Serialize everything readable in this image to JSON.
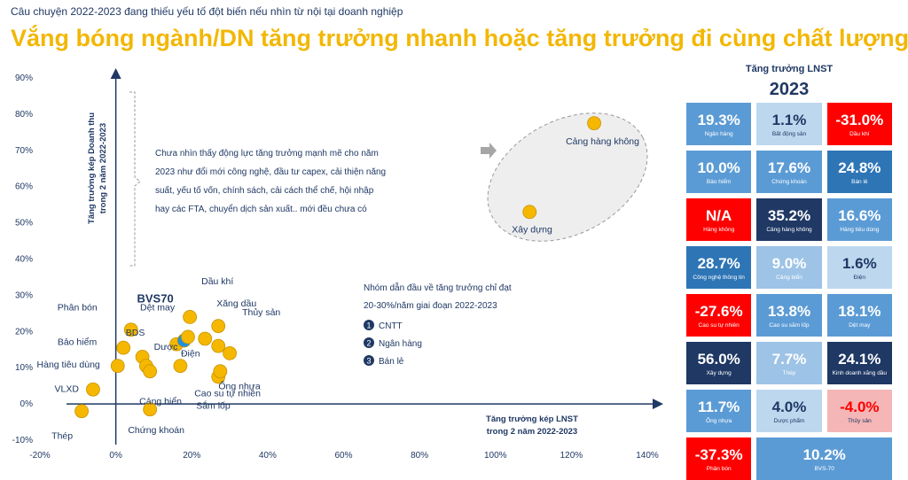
{
  "header": {
    "kicker": "Câu chuyện 2022-2023 đang thiếu yếu tố đột biến nếu nhìn từ nội tại doanh nghiệp",
    "title": "Vắng bóng ngành/DN tăng trưởng nhanh hoặc tăng trưởng đi cùng chất lượng"
  },
  "chart_data": {
    "type": "scatter",
    "xlabel": [
      "Tăng trưởng kép LNST",
      "trong 2 năm 2022-2023"
    ],
    "ylabel": [
      "Tăng trưởng kép Doanh thu",
      "trong 2 năm 2022-2023"
    ],
    "xlim": [
      -20,
      140
    ],
    "ylim": [
      -10,
      90
    ],
    "x_ticks": [
      "-20%",
      "0%",
      "20%",
      "40%",
      "60%",
      "80%",
      "100%",
      "120%",
      "140%"
    ],
    "y_ticks": [
      "-10%",
      "0%",
      "10%",
      "20%",
      "30%",
      "40%",
      "50%",
      "60%",
      "70%",
      "80%",
      "90%"
    ],
    "points": [
      {
        "label": "Thép",
        "x": -9,
        "y": -2
      },
      {
        "label": "VLXD",
        "x": -6,
        "y": 4
      },
      {
        "label": "Hàng tiêu dùng",
        "x": 0.5,
        "y": 10.5
      },
      {
        "label": "Bảo hiểm",
        "x": 2,
        "y": 15.5
      },
      {
        "label": "Phân bón",
        "x": 4,
        "y": 20.5
      },
      {
        "label": "BDS",
        "x": 7,
        "y": 13
      },
      {
        "label": "",
        "x": 8,
        "y": 10.5
      },
      {
        "label": "Cảng biển",
        "x": 9,
        "y": 9
      },
      {
        "label": "Chứng khoán",
        "x": 9,
        "y": -1.5
      },
      {
        "label": "Dệt may",
        "x": 16,
        "y": 16.5
      },
      {
        "label": "Dược",
        "x": 17,
        "y": 10.5
      },
      {
        "label": "BVS70",
        "x": 18,
        "y": 17.5,
        "highlight": true
      },
      {
        "label": "Điện",
        "x": 19,
        "y": 18.5
      },
      {
        "label": "Dầu khí",
        "x": 19.5,
        "y": 24
      },
      {
        "label": "",
        "x": 23.5,
        "y": 18
      },
      {
        "label": "Xăng dầu",
        "x": 27,
        "y": 21.5
      },
      {
        "label": "Cao su tự nhiên",
        "x": 27,
        "y": 7.5
      },
      {
        "label": "Ống nhựa",
        "x": 27.5,
        "y": 9
      },
      {
        "label": "Sắm lốp",
        "x": 27,
        "y": 16
      },
      {
        "label": "Thủy sản",
        "x": 30,
        "y": 14
      },
      {
        "label": "Xây dựng",
        "x": 109,
        "y": 53
      },
      {
        "label": "Cảng hàng không",
        "x": 126,
        "y": 77.5
      }
    ],
    "note_left": [
      "Chưa nhìn thấy động lực tăng trưởng mạnh mẽ cho năm",
      "2023 như đổi mới công nghệ, đầu tư capex, cải thiện năng",
      "suất, yếu tố vốn, chính sách, cải cách thể chế, hội nhập",
      "hay các FTA, chuyển dịch sản xuất.. mới đều chưa có"
    ],
    "note_right": [
      "Nhóm dẫn đầu về tăng trưởng chỉ đạt",
      "20-30%/năm giai đoạn 2022-2023"
    ],
    "leaders": [
      "CNTT",
      "Ngân hàng",
      "Bán lẻ"
    ],
    "bvs_label": "BVS70",
    "colors": {
      "point": "#f5b700",
      "highlight": "#1e90e0",
      "axis": "#1f3864"
    }
  },
  "panel": {
    "subtitle": "Tăng trưởng LNST",
    "year": "2023",
    "cells": [
      {
        "value": "19.3%",
        "name": "Ngân hàng",
        "color": "#5b9bd5",
        "pale": false
      },
      {
        "value": "1.1%",
        "name": "Bất động sản",
        "color": "#bdd7ee",
        "pale": true
      },
      {
        "value": "-31.0%",
        "name": "Dầu khí",
        "color": "#ff0000",
        "pale": false
      },
      {
        "value": "10.0%",
        "name": "Bảo hiểm",
        "color": "#5b9bd5",
        "pale": false
      },
      {
        "value": "17.6%",
        "name": "Chứng khoán",
        "color": "#5b9bd5",
        "pale": false
      },
      {
        "value": "24.8%",
        "name": "Bán lẻ",
        "color": "#2e75b6",
        "pale": false
      },
      {
        "value": "N/A",
        "name": "Hàng không",
        "color": "#ff0000",
        "pale": false
      },
      {
        "value": "35.2%",
        "name": "Cảng hàng không",
        "color": "#1f3864",
        "pale": false
      },
      {
        "value": "16.6%",
        "name": "Hàng tiêu dùng",
        "color": "#5b9bd5",
        "pale": false
      },
      {
        "value": "28.7%",
        "name": "Công nghệ thông tin",
        "color": "#2e75b6",
        "pale": false
      },
      {
        "value": "9.0%",
        "name": "Cảng biển",
        "color": "#9dc3e6",
        "pale": false
      },
      {
        "value": "1.6%",
        "name": "Điện",
        "color": "#bdd7ee",
        "pale": true
      },
      {
        "value": "-27.6%",
        "name": "Cao su tự nhiên",
        "color": "#ff0000",
        "pale": false
      },
      {
        "value": "13.8%",
        "name": "Cao su săm lốp",
        "color": "#5b9bd5",
        "pale": false
      },
      {
        "value": "18.1%",
        "name": "Dệt may",
        "color": "#5b9bd5",
        "pale": false
      },
      {
        "value": "56.0%",
        "name": "Xây dựng",
        "color": "#1f3864",
        "pale": false
      },
      {
        "value": "7.7%",
        "name": "Thép",
        "color": "#9dc3e6",
        "pale": false
      },
      {
        "value": "24.1%",
        "name": "Kinh doanh xăng dầu",
        "color": "#1f3864",
        "pale": false
      },
      {
        "value": "11.7%",
        "name": "Ống nhựa",
        "color": "#5b9bd5",
        "pale": false
      },
      {
        "value": "4.0%",
        "name": "Dược phẩm",
        "color": "#bdd7ee",
        "pale": true
      },
      {
        "value": "-4.0%",
        "name": "Thủy sản",
        "color": "#f4b6b6",
        "pale": true,
        "neg": true
      },
      {
        "value": "-37.3%",
        "name": "Phân bón",
        "color": "#ff0000",
        "pale": false
      },
      {
        "value": "10.2%",
        "name": "BVS-70",
        "color": "#5b9bd5",
        "pale": false,
        "wide": true
      }
    ]
  }
}
